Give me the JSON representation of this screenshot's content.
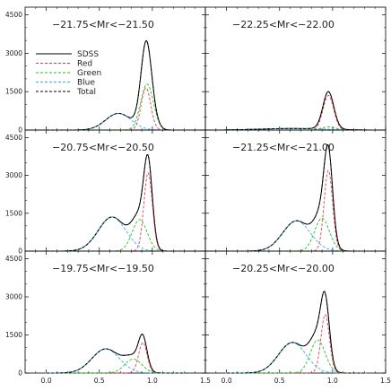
{
  "chart_data": {
    "type": "line",
    "xlim": [
      -0.2,
      1.5
    ],
    "ylim": [
      0,
      4800
    ],
    "x_ticks": [
      0.0,
      0.5,
      1.0,
      1.5
    ],
    "x_tick_labels": [
      "0.0",
      "0.5",
      "1.0",
      "1.5"
    ],
    "y_ticks": [
      0,
      1500,
      3000,
      4500
    ],
    "y_tick_labels": [
      "0",
      "1500",
      "3000",
      "4500"
    ],
    "legend": {
      "placement": "top-left",
      "panel": 0,
      "entries": [
        {
          "label": "SDSS",
          "color": "#000000",
          "dash": "solid"
        },
        {
          "label": "Red",
          "color": "#e8384f",
          "dash": "dashed"
        },
        {
          "label": "Green",
          "color": "#22c022",
          "dash": "dashed"
        },
        {
          "label": "Blue",
          "color": "#3ab0e8",
          "dash": "dashed"
        },
        {
          "label": "Total",
          "color": "#000000",
          "dash": "dashed"
        }
      ]
    },
    "panels": [
      {
        "title": "−21.75<Mr<−21.50",
        "show_x_ticklabels": false,
        "show_y_ticklabels": true,
        "components": [
          {
            "name": "Red",
            "mu": 0.94,
            "sigma": 0.045,
            "amp": 1650
          },
          {
            "name": "Green",
            "mu": 0.95,
            "sigma": 0.06,
            "amp": 1800
          },
          {
            "name": "Blue",
            "mu": 0.68,
            "sigma": 0.12,
            "amp": 650
          }
        ]
      },
      {
        "title": "−22.25<Mr<−22.00",
        "show_x_ticklabels": false,
        "show_y_ticklabels": false,
        "components": [
          {
            "name": "Red",
            "mu": 0.96,
            "sigma": 0.05,
            "amp": 1350
          },
          {
            "name": "Green",
            "mu": 0.96,
            "sigma": 0.07,
            "amp": 120
          },
          {
            "name": "Blue",
            "mu": 0.62,
            "sigma": 0.3,
            "amp": 60
          }
        ]
      },
      {
        "title": "−20.75<Mr<−20.50",
        "show_x_ticklabels": false,
        "show_y_ticklabels": true,
        "components": [
          {
            "name": "Red",
            "mu": 0.96,
            "sigma": 0.04,
            "amp": 3100
          },
          {
            "name": "Green",
            "mu": 0.88,
            "sigma": 0.07,
            "amp": 1250
          },
          {
            "name": "Blue",
            "mu": 0.62,
            "sigma": 0.13,
            "amp": 1350
          }
        ]
      },
      {
        "title": "−21.25<Mr<−21.00",
        "show_x_ticklabels": false,
        "show_y_ticklabels": false,
        "components": [
          {
            "name": "Red",
            "mu": 0.96,
            "sigma": 0.04,
            "amp": 3200
          },
          {
            "name": "Green",
            "mu": 0.9,
            "sigma": 0.07,
            "amp": 1300
          },
          {
            "name": "Blue",
            "mu": 0.66,
            "sigma": 0.13,
            "amp": 1200
          }
        ]
      },
      {
        "title": "−19.75<Mr<−19.50",
        "show_x_ticklabels": true,
        "show_y_ticklabels": true,
        "components": [
          {
            "name": "Red",
            "mu": 0.91,
            "sigma": 0.04,
            "amp": 1200
          },
          {
            "name": "Green",
            "mu": 0.82,
            "sigma": 0.08,
            "amp": 550
          },
          {
            "name": "Blue",
            "mu": 0.56,
            "sigma": 0.13,
            "amp": 950
          }
        ]
      },
      {
        "title": "−20.25<Mr<−20.00",
        "show_x_ticklabels": true,
        "show_y_ticklabels": false,
        "components": [
          {
            "name": "Red",
            "mu": 0.93,
            "sigma": 0.04,
            "amp": 2300
          },
          {
            "name": "Green",
            "mu": 0.86,
            "sigma": 0.07,
            "amp": 1300
          },
          {
            "name": "Blue",
            "mu": 0.62,
            "sigma": 0.13,
            "amp": 1200
          }
        ]
      }
    ]
  }
}
